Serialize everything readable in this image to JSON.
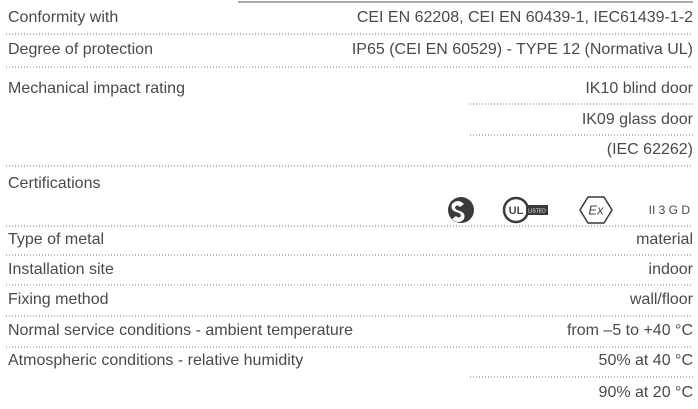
{
  "rows": [
    {
      "label": "Conformity with",
      "values": [
        "CEI EN 62208, CEI EN 60439-1, IEC61439-1-2"
      ]
    },
    {
      "label": "Degree of protection",
      "values": [
        "IP65 (CEI EN 60529) - TYPE 12 (Normativa UL)"
      ]
    },
    {
      "label": "Mechanical impact rating",
      "values": [
        "IK10 blind door",
        "IK09 glass door",
        "(IEC 62262)"
      ]
    },
    {
      "label": "Certifications",
      "marks": {
        "ul": "UL",
        "ul_listed": "LISTED",
        "ex": "Ex",
        "ex_category": "II 3 G D"
      }
    },
    {
      "label": "Type of metal",
      "values": [
        "material"
      ]
    },
    {
      "label": "Installation site",
      "values": [
        "indoor"
      ]
    },
    {
      "label": "Fixing method",
      "values": [
        "wall/floor"
      ]
    },
    {
      "label": "Normal service conditions - ambient temperature",
      "values": [
        "from –5 to +40 °C"
      ]
    },
    {
      "label": "Atmospheric conditions - relative humidity",
      "values": [
        "50% at 40 °C",
        "90% at 20 °C"
      ]
    }
  ]
}
